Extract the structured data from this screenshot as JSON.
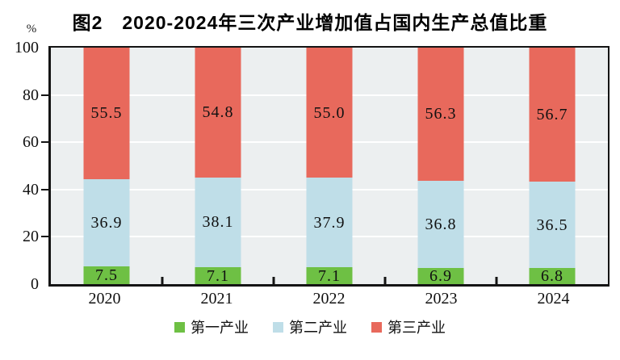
{
  "header": {
    "title": "图2　2020-2024年三次产业增加值占国内生产总值比重"
  },
  "y_axis": {
    "unit": "%",
    "ticks": [
      0,
      20,
      40,
      60,
      80,
      100
    ]
  },
  "chart_data": {
    "type": "bar",
    "stacked": true,
    "title": "图2　2020-2024年三次产业增加值占国内生产总值比重",
    "categories": [
      "2020",
      "2021",
      "2022",
      "2023",
      "2024"
    ],
    "series": [
      {
        "name": "第一产业",
        "color": "#6EC044",
        "values": [
          7.5,
          7.1,
          7.1,
          6.9,
          6.8
        ]
      },
      {
        "name": "第二产业",
        "color": "#BFDEE8",
        "values": [
          36.9,
          38.1,
          37.9,
          36.8,
          36.5
        ]
      },
      {
        "name": "第三产业",
        "color": "#E8695C",
        "values": [
          55.5,
          54.8,
          55.0,
          56.3,
          56.7
        ]
      }
    ],
    "xlabel": "",
    "ylabel": "%",
    "ylim": [
      0,
      100
    ],
    "yticks": [
      0,
      20,
      40,
      60,
      80,
      100
    ],
    "grid": true,
    "legend_position": "bottom",
    "colors": {
      "plot_background": "#ECEFF0",
      "gridline": "#FFFFFF",
      "axis": "#141414",
      "label_text": "#111111"
    }
  }
}
